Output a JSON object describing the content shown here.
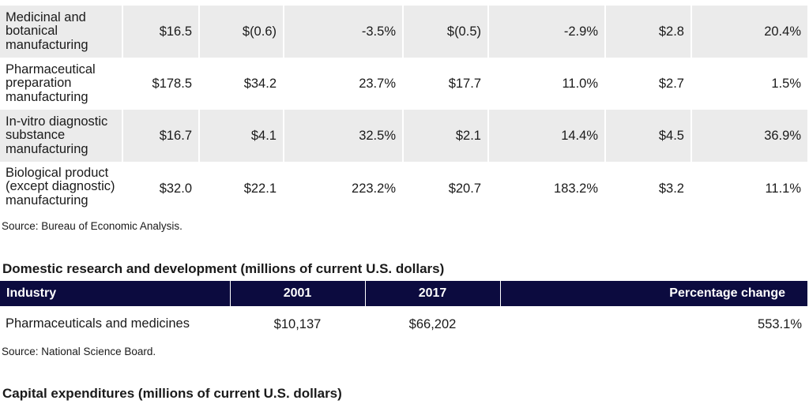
{
  "table1": {
    "rows": [
      {
        "industry": "Medicinal and botanical manufacturing",
        "c1": "$16.5",
        "c2": "$(0.6)",
        "c3": "-3.5%",
        "c4": "$(0.5)",
        "c5": "-2.9%",
        "c6": "$2.8",
        "c7": "20.4%"
      },
      {
        "industry": "Pharmaceutical preparation manufacturing",
        "c1": "$178.5",
        "c2": "$34.2",
        "c3": "23.7%",
        "c4": "$17.7",
        "c5": "11.0%",
        "c6": "$2.7",
        "c7": "1.5%"
      },
      {
        "industry": "In-vitro diagnostic substance manufacturing",
        "c1": "$16.7",
        "c2": "$4.1",
        "c3": "32.5%",
        "c4": "$2.1",
        "c5": "14.4%",
        "c6": "$4.5",
        "c7": "36.9%"
      },
      {
        "industry": "Biological product (except diagnostic) manufacturing",
        "c1": "$32.0",
        "c2": "$22.1",
        "c3": "223.2%",
        "c4": "$20.7",
        "c5": "183.2%",
        "c6": "$3.2",
        "c7": "11.1%"
      }
    ],
    "source": "Source: Bureau of Economic Analysis."
  },
  "rd": {
    "heading": "Domestic research and development (millions of current U.S. dollars)",
    "columns": [
      "Industry",
      "2001",
      "2017",
      "Percentage change"
    ],
    "row": {
      "industry": "Pharmaceuticals and medicines",
      "y2001": "$10,137",
      "y2017": "$66,202",
      "change": "553.1%"
    },
    "source": "Source: National Science Board."
  },
  "capex": {
    "heading": "Capital expenditures (millions of current U.S. dollars)"
  },
  "colors": {
    "header_bg": "#0c0b3f",
    "shaded_row": "#ebebeb"
  }
}
